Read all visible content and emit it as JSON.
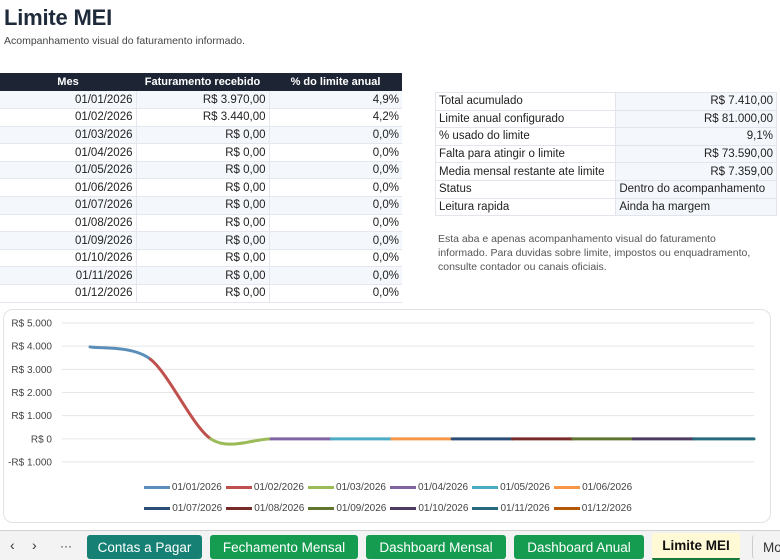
{
  "sheet": {
    "title": "Limite MEI",
    "subtitle": "Acompanhamento visual do faturamento informado."
  },
  "month_table": {
    "headers": [
      "Mes",
      "Faturamento recebido",
      "% do limite anual"
    ],
    "rows": [
      [
        "01/01/2026",
        "R$ 3.970,00",
        "4,9%"
      ],
      [
        "01/02/2026",
        "R$ 3.440,00",
        "4,2%"
      ],
      [
        "01/03/2026",
        "R$ 0,00",
        "0,0%"
      ],
      [
        "01/04/2026",
        "R$ 0,00",
        "0,0%"
      ],
      [
        "01/05/2026",
        "R$ 0,00",
        "0,0%"
      ],
      [
        "01/06/2026",
        "R$ 0,00",
        "0,0%"
      ],
      [
        "01/07/2026",
        "R$ 0,00",
        "0,0%"
      ],
      [
        "01/08/2026",
        "R$ 0,00",
        "0,0%"
      ],
      [
        "01/09/2026",
        "R$ 0,00",
        "0,0%"
      ],
      [
        "01/10/2026",
        "R$ 0,00",
        "0,0%"
      ],
      [
        "01/11/2026",
        "R$ 0,00",
        "0,0%"
      ],
      [
        "01/12/2026",
        "R$ 0,00",
        "0,0%"
      ]
    ]
  },
  "summary": [
    [
      "Total acumulado",
      "R$ 7.410,00"
    ],
    [
      "Limite anual configurado",
      "R$ 81.000,00"
    ],
    [
      "% usado do limite",
      "9,1%"
    ],
    [
      "Falta para atingir o limite",
      "R$ 73.590,00"
    ],
    [
      "Media mensal restante ate limite",
      "R$ 7.359,00"
    ],
    [
      "Status",
      "Dentro do acompanhamento"
    ],
    [
      "Leitura rapida",
      "Ainda ha margem"
    ]
  ],
  "note": "Esta aba e apenas acompanhamento visual do faturamento informado. Para duvidas sobre limite, impostos ou enquadramento, consulte contador ou canais oficiais.",
  "chart_data": {
    "type": "line",
    "smooth": true,
    "categories": [
      "01/01/2026",
      "01/02/2026",
      "01/03/2026",
      "01/04/2026",
      "01/05/2026",
      "01/06/2026",
      "01/07/2026",
      "01/08/2026",
      "01/09/2026",
      "01/10/2026",
      "01/11/2026",
      "01/12/2026"
    ],
    "values": [
      3970,
      3440,
      0,
      0,
      0,
      0,
      0,
      0,
      0,
      0,
      0,
      0
    ],
    "segment_colors": [
      "#5b8fb9",
      "#c0504d",
      "#9bbb59",
      "#8064a2",
      "#4bacc6",
      "#f79646",
      "#2c4d75",
      "#772c2a",
      "#5f7530",
      "#4d3b62",
      "#276a7c",
      "#b65708"
    ],
    "yticks": [
      5000,
      4000,
      3000,
      2000,
      1000,
      0,
      -1000
    ],
    "ytick_labels": [
      "R$ 5.000",
      "R$ 4.000",
      "R$ 3.000",
      "R$ 2.000",
      "R$ 1.000",
      "R$ 0",
      "-R$ 1.000"
    ],
    "ylim": [
      -1000,
      5000
    ],
    "grid": true,
    "legend": "bottom",
    "legend_rows": [
      [
        0,
        1,
        2,
        3,
        4,
        5
      ],
      [
        6,
        7,
        8,
        9,
        10,
        11
      ]
    ],
    "title": "",
    "xlabel": "",
    "ylabel": ""
  },
  "tabs": {
    "nav": [
      "‹",
      "›",
      "···"
    ],
    "items": [
      {
        "label": "Contas a Pagar",
        "style": "teal"
      },
      {
        "label": "Fechamento Mensal",
        "style": "green"
      },
      {
        "label": "Dashboard Mensal",
        "style": "green"
      },
      {
        "label": "Dashboard Anual",
        "style": "green"
      },
      {
        "label": "Limite MEI",
        "style": "active"
      },
      {
        "label": "Mo",
        "style": "partial"
      }
    ]
  }
}
